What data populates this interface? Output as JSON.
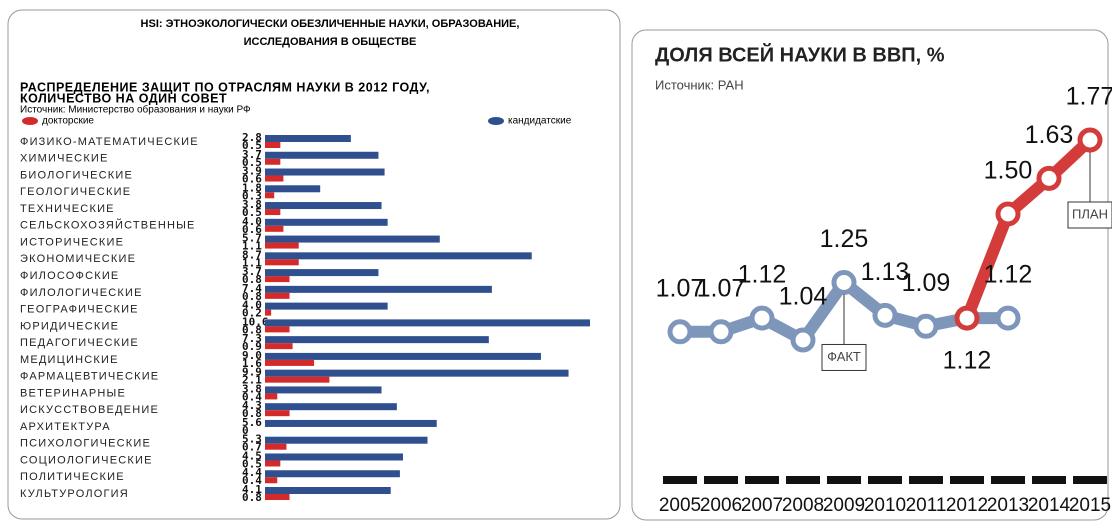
{
  "header": {
    "title": [
      "HSI: ЭТНОЭКОЛОГИЧЕСКИ ОБЕЗЛИЧЕННЫЕ  НАУКИ, ОБРАЗОВАНИЕ,",
      "ИССЛЕДОВАНИЯ В ОБЩЕСТВЕ"
    ]
  },
  "chart_data": [
    {
      "type": "bar",
      "orientation": "horizontal",
      "title": [
        "РАСПРЕДЕЛЕНИЕ ЗАЩИТ ПО ОТРАСЛЯМ НАУКИ В 2012 ГОДУ,",
        "КОЛИЧЕСТВО НА ОДИН СОВЕТ"
      ],
      "subtitle": "Источник: Министерство образования и науки РФ",
      "categories": [
        "ФИЗИКО-МАТЕМАТИЧЕСКИЕ",
        "ХИМИЧЕСКИЕ",
        "БИОЛОГИЧЕСКИЕ",
        "ГЕОЛОГИЧЕСКИЕ",
        "ТЕХНИЧЕСКИЕ",
        "СЕЛЬСКОХОЗЯЙСТВЕННЫЕ",
        "ИСТОРИЧЕСКИЕ",
        "ЭКОНОМИЧЕСКИЕ",
        "ФИЛОСОФСКИЕ",
        "ФИЛОЛОГИЧЕСКИЕ",
        "ГЕОГРАФИЧЕСКИЕ",
        "ЮРИДИЧЕСКИЕ",
        "ПЕДАГОГИЧЕСКИЕ",
        "МЕДИЦИНСКИЕ",
        "ФАРМАЦЕВТИЧЕСКИЕ",
        "ВЕТЕРИНАРНЫЕ",
        "ИСКУССТВОВЕДЕНИЕ",
        "АРХИТЕКТУРА",
        "ПСИХОЛОГИЧЕСКИЕ",
        "СОЦИОЛОГИЧЕСКИЕ",
        "ПОЛИТИЧЕСКИЕ",
        "КУЛЬТУРОЛОГИЯ"
      ],
      "series": [
        {
          "name": "кандидатские",
          "color": "#2f4f8f",
          "values": [
            2.8,
            3.7,
            3.9,
            1.8,
            3.8,
            4,
            5.7,
            8.7,
            3.7,
            7.4,
            4,
            10.6,
            7.3,
            9,
            9.9,
            3.8,
            4.3,
            5.6,
            5.3,
            4.5,
            4.4,
            4.1
          ],
          "value_labels": [
            "2.8",
            "3.7",
            "3.9",
            "1.8",
            "3.8",
            "4.0",
            "5.7",
            "8.7",
            "3.7",
            "7.4",
            "4.0",
            "10.6",
            "7.3",
            "9.0",
            "9.9",
            "3.8",
            "4.3",
            "5.6",
            "5.3",
            "4.5",
            "4.4",
            "4.1"
          ]
        },
        {
          "name": "докторские",
          "color": "#d42a2a",
          "values": [
            0.5,
            0.5,
            0.6,
            0.3,
            0.5,
            0.6,
            1.1,
            1.1,
            0.8,
            0.8,
            0.2,
            0.8,
            0.9,
            1.6,
            2.1,
            0.4,
            0.8,
            0,
            0.7,
            0.5,
            0.4,
            0.8
          ],
          "value_labels": [
            "0.5",
            "0.5",
            "0.6",
            "0.3",
            "0.5",
            "0.6",
            "1.1",
            "1.1",
            "0.8",
            "0.8",
            "0.2",
            "0.8",
            "0.9",
            "1.6",
            "2.1",
            "0.4",
            "0.8",
            "0",
            "0.7",
            "0.5",
            "0.4",
            "0.8"
          ]
        }
      ]
    },
    {
      "type": "line",
      "title": "ДОЛЯ ВСЕЙ НАУКИ В ВВП, %",
      "subtitle": "Источник: РАН",
      "x": [
        "2005",
        "2006",
        "2007",
        "2008",
        "2009",
        "2010",
        "2011",
        "2012",
        "2013",
        "2014",
        "2015"
      ],
      "series": [
        {
          "name": "ФАКТ",
          "color": "#7d96ba",
          "values": [
            1.07,
            1.07,
            1.12,
            1.04,
            1.25,
            1.13,
            1.09,
            1.12,
            1.12,
            null,
            null
          ],
          "value_labels": [
            "1.07",
            "1.07",
            "1.12",
            "1.04",
            "1.25",
            "1.13",
            "1.09",
            "1.12",
            "1.12",
            null,
            null
          ]
        },
        {
          "name": "ПЛАН",
          "color": "#d43c3c",
          "values": [
            null,
            null,
            null,
            null,
            null,
            null,
            null,
            1.12,
            1.5,
            1.63,
            1.77
          ],
          "value_labels": [
            null,
            null,
            null,
            null,
            null,
            null,
            null,
            null,
            "1.50",
            "1.63",
            "1.77"
          ]
        }
      ]
    }
  ]
}
